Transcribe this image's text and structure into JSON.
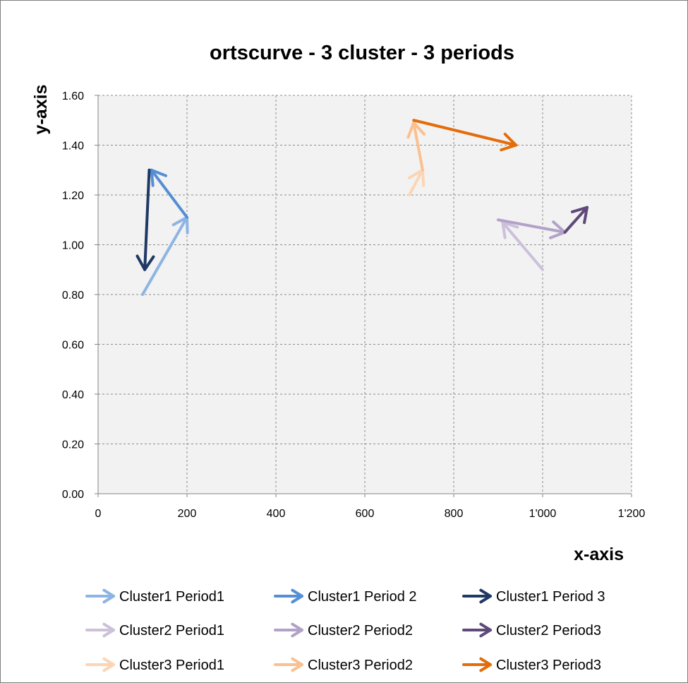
{
  "chart_data": {
    "type": "scatter",
    "title": "ortscurve - 3 cluster - 3 periods",
    "xlabel": "x-axis",
    "ylabel": "y-axis",
    "xlim": [
      0,
      1200
    ],
    "ylim": [
      0,
      1.6
    ],
    "x_ticks": [
      "0",
      "200",
      "400",
      "600",
      "800",
      "1'000",
      "1'200"
    ],
    "x_tick_values": [
      0,
      200,
      400,
      600,
      800,
      1000,
      1200
    ],
    "y_ticks": [
      "0.00",
      "0.20",
      "0.40",
      "0.60",
      "0.80",
      "1.00",
      "1.20",
      "1.40",
      "1.60"
    ],
    "y_tick_values": [
      0,
      0.2,
      0.4,
      0.6,
      0.8,
      1.0,
      1.2,
      1.4,
      1.6
    ],
    "grid": true,
    "grid_style": "dashed",
    "legend_position": "bottom",
    "series": [
      {
        "name": "Cluster1 Period1",
        "color": "#8db4e2",
        "x": [
          100,
          200
        ],
        "y": [
          0.8,
          1.11
        ]
      },
      {
        "name": "Cluster1 Period 2",
        "color": "#558ed5",
        "x": [
          200,
          120
        ],
        "y": [
          1.11,
          1.3
        ]
      },
      {
        "name": "Cluster1 Period 3",
        "color": "#1f3864",
        "x": [
          115,
          105
        ],
        "y": [
          1.3,
          0.9
        ]
      },
      {
        "name": "Cluster2 Period1",
        "color": "#ccc0da",
        "x": [
          1000,
          910
        ],
        "y": [
          0.9,
          1.09
        ]
      },
      {
        "name": "Cluster2 Period2",
        "color": "#b3a2c7",
        "x": [
          900,
          1050
        ],
        "y": [
          1.1,
          1.05
        ]
      },
      {
        "name": "Cluster2 Period3",
        "color": "#5f497a",
        "x": [
          1050,
          1100
        ],
        "y": [
          1.05,
          1.15
        ]
      },
      {
        "name": "Cluster3 Period1",
        "color": "#fcd5b5",
        "x": [
          700,
          730
        ],
        "y": [
          1.2,
          1.3
        ]
      },
      {
        "name": "Cluster3 Period2",
        "color": "#fac090",
        "x": [
          730,
          710
        ],
        "y": [
          1.3,
          1.49
        ]
      },
      {
        "name": "Cluster3 Period3",
        "color": "#e46c0a",
        "x": [
          710,
          940
        ],
        "y": [
          1.5,
          1.4
        ]
      }
    ]
  },
  "colors": {
    "plot_background": "#f2f2f2",
    "gridline": "#8c8c8c",
    "border": "#7f7f7f"
  }
}
